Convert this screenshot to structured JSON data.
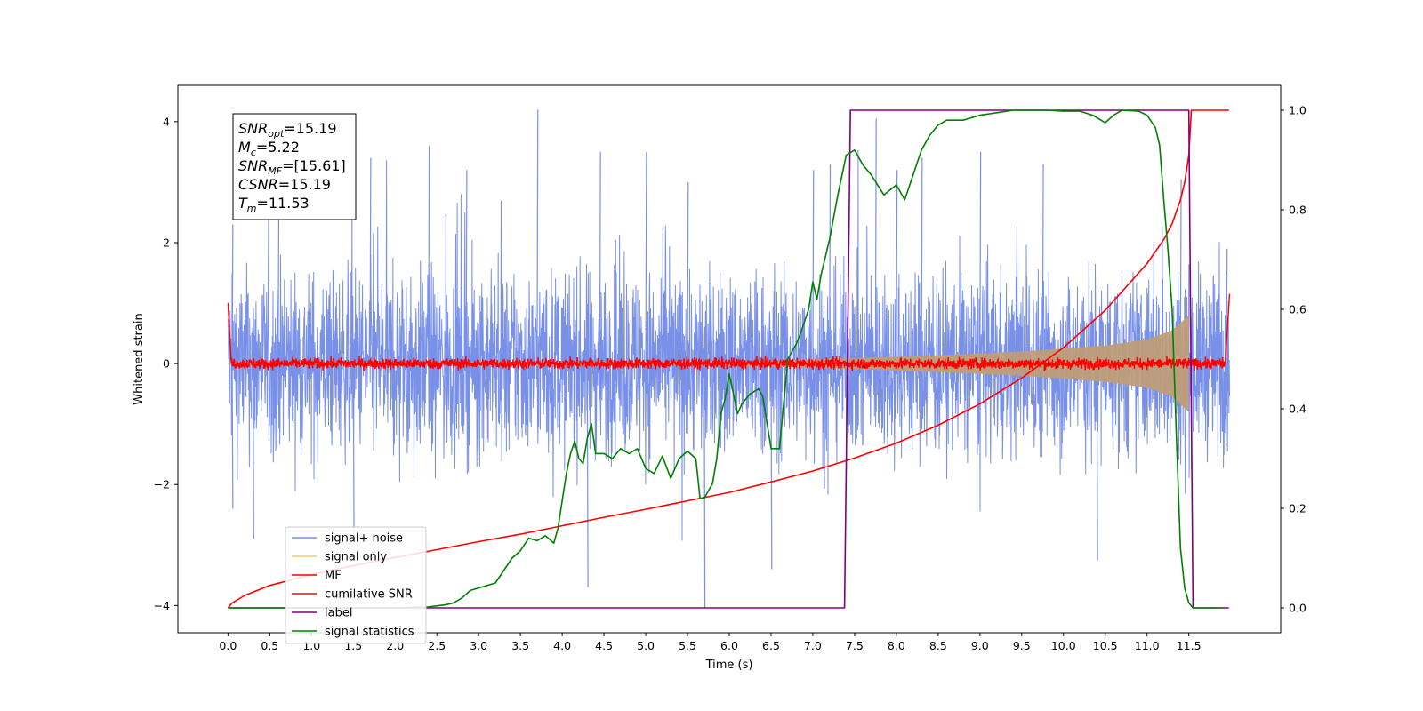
{
  "chart_data": {
    "type": "line",
    "title": "",
    "xlabel": "Time (s)",
    "ylabel": "Whitened strain",
    "y2label": "",
    "xlim": [
      -0.6,
      12.6
    ],
    "ylim": [
      -4.45,
      4.6
    ],
    "y2lim": [
      -0.05,
      1.05
    ],
    "x_ticks": [
      0.0,
      0.5,
      1.0,
      1.5,
      2.0,
      2.5,
      3.0,
      3.5,
      4.0,
      4.5,
      5.0,
      5.5,
      6.0,
      6.5,
      7.0,
      7.5,
      8.0,
      8.5,
      9.0,
      9.5,
      10.0,
      10.5,
      11.0,
      11.5
    ],
    "x_tick_labels": [
      "0.0",
      "0.5",
      "1.0",
      "1.5",
      "2.0",
      "2.5",
      "3.0",
      "3.5",
      "4.0",
      "4.5",
      "5.0",
      "5.5",
      "6.0",
      "6.5",
      "7.0",
      "7.5",
      "8.0",
      "8.5",
      "9.0",
      "9.5",
      "10.0",
      "10.5",
      "11.0",
      "11.5"
    ],
    "y_ticks": [
      -4,
      -2,
      0,
      2,
      4
    ],
    "y_tick_labels": [
      "−4",
      "−2",
      "0",
      "2",
      "4"
    ],
    "y2_ticks": [
      0.0,
      0.2,
      0.4,
      0.6,
      0.8,
      1.0
    ],
    "y2_tick_labels": [
      "0.0",
      "0.2",
      "0.4",
      "0.6",
      "0.8",
      "1.0"
    ],
    "grid": false,
    "legend_position": "lower-left",
    "info_box": [
      {
        "base": "SNR",
        "sub": "opt",
        "value": "=15.19"
      },
      {
        "base": "M",
        "sub": "c",
        "value": "=5.22"
      },
      {
        "base": "SNR",
        "sub": "MF",
        "value": "=[15.61]"
      },
      {
        "base": "CSNR",
        "sub": "",
        "value": "=15.19"
      },
      {
        "base": "T",
        "sub": "m",
        "value": "=11.53"
      }
    ],
    "series": [
      {
        "name": "signal+ noise",
        "color": "#7990e8",
        "axis": "left",
        "kind": "noise",
        "t_start": 0.0,
        "t_end": 11.99,
        "envelope_positive": 1.9,
        "envelope_negative": -1.9,
        "peaks": [
          {
            "x": 0.05,
            "y": 2.3
          },
          {
            "x": 0.05,
            "y": -2.4
          },
          {
            "x": 0.3,
            "y": -2.9
          },
          {
            "x": 0.6,
            "y": 2.5
          },
          {
            "x": 1.5,
            "y": -2.9
          },
          {
            "x": 1.7,
            "y": 3.4
          },
          {
            "x": 2.4,
            "y": 3.6
          },
          {
            "x": 2.85,
            "y": 3.2
          },
          {
            "x": 3.7,
            "y": 4.2
          },
          {
            "x": 4.3,
            "y": -3.7
          },
          {
            "x": 4.45,
            "y": 3.5
          },
          {
            "x": 5.0,
            "y": 3.5
          },
          {
            "x": 5.5,
            "y": 3.0
          },
          {
            "x": 5.7,
            "y": -4.05
          },
          {
            "x": 6.5,
            "y": -3.4
          },
          {
            "x": 7.0,
            "y": 3.2
          },
          {
            "x": 7.2,
            "y": 3.3
          },
          {
            "x": 7.75,
            "y": 4.05
          },
          {
            "x": 8.0,
            "y": 3.2
          },
          {
            "x": 8.3,
            "y": 3.4
          },
          {
            "x": 9.0,
            "y": 3.5
          },
          {
            "x": 9.75,
            "y": 3.3
          },
          {
            "x": 10.4,
            "y": -3.25
          },
          {
            "x": 11.4,
            "y": 3.05
          },
          {
            "x": 11.45,
            "y": -2.15
          },
          {
            "x": 11.95,
            "y": 1.9
          }
        ]
      },
      {
        "name": "signal only",
        "color": "#f5c86e",
        "fill_color": "#bf9d78",
        "axis": "left",
        "kind": "chirp-envelope",
        "points": [
          [
            0.0,
            0.01
          ],
          [
            5.5,
            0.03
          ],
          [
            6.5,
            0.05
          ],
          [
            7.5,
            0.09
          ],
          [
            8.5,
            0.14
          ],
          [
            9.5,
            0.2
          ],
          [
            10.5,
            0.3
          ],
          [
            11.0,
            0.4
          ],
          [
            11.3,
            0.55
          ],
          [
            11.5,
            0.8
          ]
        ]
      },
      {
        "name": "MF",
        "color": "#ff0000",
        "axis": "left",
        "kind": "noise",
        "t_start": 0.0,
        "t_end": 11.99,
        "envelope_positive": 0.12,
        "envelope_negative": -0.12,
        "peaks": [
          {
            "x": 0.0,
            "y": 1.0
          },
          {
            "x": 0.03,
            "y": 0.3
          },
          {
            "x": 11.98,
            "y": 1.0
          },
          {
            "x": 11.95,
            "y": 0.35
          }
        ]
      },
      {
        "name": "cumilative SNR",
        "color": "#ff0000",
        "axis": "right",
        "kind": "line",
        "points": [
          [
            0.0,
            0.0
          ],
          [
            0.05,
            0.01
          ],
          [
            0.2,
            0.025
          ],
          [
            0.5,
            0.045
          ],
          [
            1.0,
            0.067
          ],
          [
            1.5,
            0.085
          ],
          [
            2.0,
            0.101
          ],
          [
            2.5,
            0.117
          ],
          [
            3.0,
            0.133
          ],
          [
            3.5,
            0.148
          ],
          [
            4.0,
            0.165
          ],
          [
            4.5,
            0.182
          ],
          [
            5.0,
            0.198
          ],
          [
            5.5,
            0.215
          ],
          [
            6.0,
            0.232
          ],
          [
            6.5,
            0.253
          ],
          [
            7.0,
            0.275
          ],
          [
            7.5,
            0.301
          ],
          [
            8.0,
            0.331
          ],
          [
            8.5,
            0.367
          ],
          [
            9.0,
            0.41
          ],
          [
            9.5,
            0.462
          ],
          [
            10.0,
            0.523
          ],
          [
            10.5,
            0.598
          ],
          [
            11.0,
            0.692
          ],
          [
            11.2,
            0.74
          ],
          [
            11.3,
            0.772
          ],
          [
            11.4,
            0.82
          ],
          [
            11.45,
            0.855
          ],
          [
            11.5,
            0.91
          ],
          [
            11.53,
            1.0
          ],
          [
            11.8,
            1.0
          ],
          [
            11.98,
            1.0
          ]
        ]
      },
      {
        "name": "label",
        "color": "#800080",
        "axis": "right",
        "kind": "line",
        "points": [
          [
            0.0,
            0.0
          ],
          [
            7.38,
            0.0
          ],
          [
            7.45,
            1.0
          ],
          [
            11.5,
            1.0
          ],
          [
            11.55,
            0.0
          ],
          [
            11.98,
            0.0
          ]
        ]
      },
      {
        "name": "signal statistics",
        "color": "#008000",
        "axis": "right",
        "kind": "line",
        "points": [
          [
            0.0,
            0.0
          ],
          [
            1.0,
            0.0
          ],
          [
            2.0,
            0.0
          ],
          [
            2.4,
            0.002
          ],
          [
            2.6,
            0.006
          ],
          [
            2.7,
            0.01
          ],
          [
            2.8,
            0.02
          ],
          [
            2.9,
            0.035
          ],
          [
            3.0,
            0.04
          ],
          [
            3.1,
            0.045
          ],
          [
            3.2,
            0.05
          ],
          [
            3.3,
            0.075
          ],
          [
            3.4,
            0.1
          ],
          [
            3.5,
            0.115
          ],
          [
            3.6,
            0.14
          ],
          [
            3.7,
            0.135
          ],
          [
            3.8,
            0.145
          ],
          [
            3.9,
            0.13
          ],
          [
            3.95,
            0.16
          ],
          [
            4.0,
            0.215
          ],
          [
            4.05,
            0.27
          ],
          [
            4.1,
            0.31
          ],
          [
            4.15,
            0.335
          ],
          [
            4.2,
            0.3
          ],
          [
            4.25,
            0.29
          ],
          [
            4.3,
            0.34
          ],
          [
            4.35,
            0.37
          ],
          [
            4.4,
            0.31
          ],
          [
            4.5,
            0.31
          ],
          [
            4.6,
            0.3
          ],
          [
            4.7,
            0.32
          ],
          [
            4.8,
            0.31
          ],
          [
            4.9,
            0.32
          ],
          [
            5.0,
            0.28
          ],
          [
            5.1,
            0.27
          ],
          [
            5.2,
            0.305
          ],
          [
            5.3,
            0.26
          ],
          [
            5.4,
            0.3
          ],
          [
            5.5,
            0.315
          ],
          [
            5.6,
            0.3
          ],
          [
            5.65,
            0.22
          ],
          [
            5.7,
            0.22
          ],
          [
            5.8,
            0.25
          ],
          [
            5.85,
            0.3
          ],
          [
            5.9,
            0.39
          ],
          [
            5.95,
            0.42
          ],
          [
            6.0,
            0.47
          ],
          [
            6.05,
            0.43
          ],
          [
            6.1,
            0.39
          ],
          [
            6.15,
            0.41
          ],
          [
            6.25,
            0.43
          ],
          [
            6.35,
            0.44
          ],
          [
            6.4,
            0.425
          ],
          [
            6.5,
            0.32
          ],
          [
            6.6,
            0.32
          ],
          [
            6.7,
            0.5
          ],
          [
            6.8,
            0.53
          ],
          [
            6.85,
            0.55
          ],
          [
            6.95,
            0.6
          ],
          [
            7.0,
            0.655
          ],
          [
            7.05,
            0.62
          ],
          [
            7.1,
            0.67
          ],
          [
            7.2,
            0.74
          ],
          [
            7.3,
            0.83
          ],
          [
            7.4,
            0.91
          ],
          [
            7.5,
            0.92
          ],
          [
            7.6,
            0.89
          ],
          [
            7.7,
            0.87
          ],
          [
            7.85,
            0.83
          ],
          [
            8.0,
            0.85
          ],
          [
            8.1,
            0.82
          ],
          [
            8.2,
            0.87
          ],
          [
            8.3,
            0.92
          ],
          [
            8.4,
            0.95
          ],
          [
            8.5,
            0.97
          ],
          [
            8.6,
            0.98
          ],
          [
            8.8,
            0.98
          ],
          [
            9.0,
            0.99
          ],
          [
            9.2,
            0.995
          ],
          [
            9.4,
            1.0
          ],
          [
            9.6,
            1.0
          ],
          [
            9.8,
            1.0
          ],
          [
            10.0,
            0.998
          ],
          [
            10.2,
            0.998
          ],
          [
            10.35,
            0.99
          ],
          [
            10.45,
            0.98
          ],
          [
            10.5,
            0.975
          ],
          [
            10.6,
            0.99
          ],
          [
            10.7,
            1.0
          ],
          [
            10.9,
            0.998
          ],
          [
            11.0,
            0.99
          ],
          [
            11.1,
            0.965
          ],
          [
            11.15,
            0.93
          ],
          [
            11.2,
            0.82
          ],
          [
            11.25,
            0.72
          ],
          [
            11.3,
            0.6
          ],
          [
            11.35,
            0.35
          ],
          [
            11.4,
            0.12
          ],
          [
            11.45,
            0.04
          ],
          [
            11.5,
            0.01
          ],
          [
            11.55,
            0.0
          ],
          [
            11.9,
            0.0
          ]
        ]
      }
    ]
  }
}
